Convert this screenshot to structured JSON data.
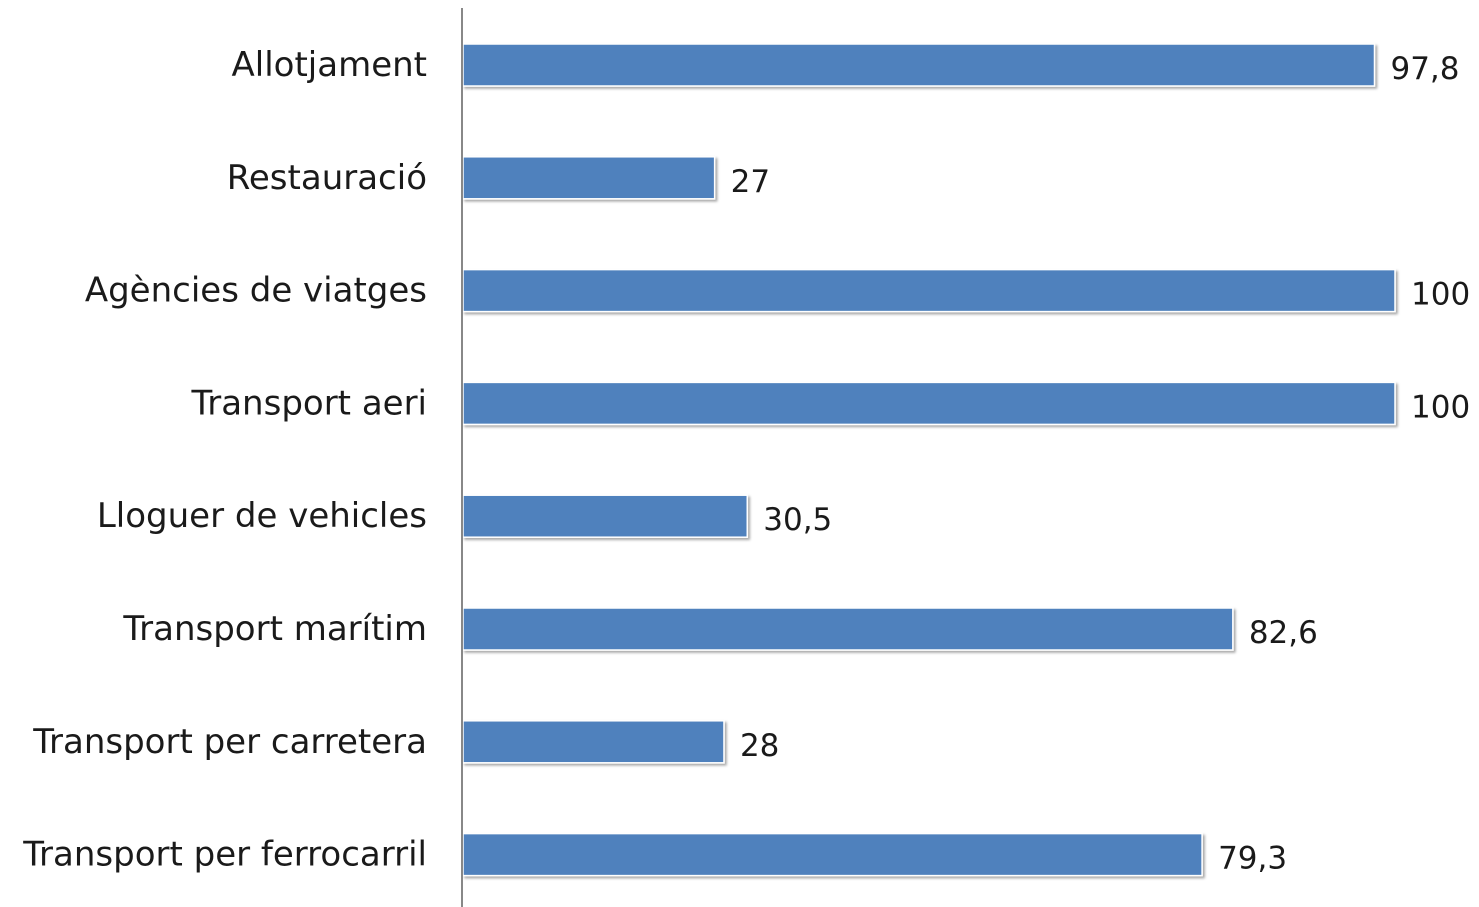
{
  "chart_data": {
    "type": "bar",
    "orientation": "horizontal",
    "categories": [
      "Allotjament",
      "Restauració",
      "Agències de viatges",
      "Transport aeri",
      "Lloguer de vehicles",
      "Transport marítim",
      "Transport per carretera",
      "Transport per ferrocarril"
    ],
    "values": [
      97.8,
      27,
      100,
      100,
      30.5,
      82.6,
      28,
      79.3
    ],
    "value_labels": [
      "97,8",
      "27",
      "100",
      "100",
      "30,5",
      "82,6",
      "28",
      "79,3"
    ],
    "title": "",
    "xlabel": "",
    "ylabel": "",
    "xlim": [
      0,
      100
    ],
    "grid": false,
    "legend": "none",
    "bar_color": "#4F81BD",
    "axis_color": "#888888"
  }
}
